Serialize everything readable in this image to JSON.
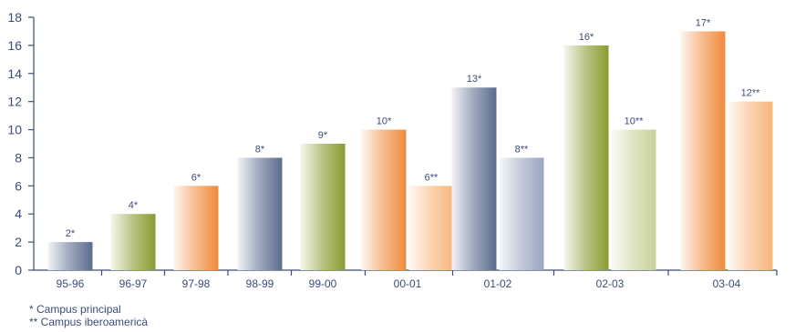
{
  "chart_data": {
    "type": "bar",
    "categories": [
      "95-96",
      "96-97",
      "97-98",
      "98-99",
      "99-00",
      "00-01",
      "01-02",
      "02-03",
      "03-04"
    ],
    "ylim": [
      0,
      18
    ],
    "yticks": [
      0,
      2,
      4,
      6,
      8,
      10,
      12,
      14,
      16,
      18
    ],
    "grid": false,
    "bars": [
      {
        "category": "95-96",
        "value": 2,
        "label": "2*",
        "color": "#5a6b8c"
      },
      {
        "category": "96-97",
        "value": 4,
        "label": "4*",
        "color": "#8a9a2e"
      },
      {
        "category": "97-98",
        "value": 6,
        "label": "6*",
        "color": "#f08a3c"
      },
      {
        "category": "98-99",
        "value": 8,
        "label": "8*",
        "color": "#5a6b8c"
      },
      {
        "category": "99-00",
        "value": 9,
        "label": "9*",
        "color": "#8a9a2e"
      },
      {
        "category": "00-01",
        "value": 10,
        "label": "10*",
        "color": "#f08a3c"
      },
      {
        "category": "00-01",
        "value": 6,
        "label": "6**",
        "color": "#f7b57a"
      },
      {
        "category": "01-02",
        "value": 13,
        "label": "13*",
        "color": "#5a6b8c"
      },
      {
        "category": "01-02",
        "value": 8,
        "label": "8**",
        "color": "#9aa4bd"
      },
      {
        "category": "02-03",
        "value": 16,
        "label": "16*",
        "color": "#8a9a2e"
      },
      {
        "category": "02-03",
        "value": 10,
        "label": "10**",
        "color": "#c9cf9a"
      },
      {
        "category": "03-04",
        "value": 17,
        "label": "17*",
        "color": "#f08a3c"
      },
      {
        "category": "03-04",
        "value": 12,
        "label": "12**",
        "color": "#f7b57a"
      }
    ],
    "text_color": "#3b4c78",
    "axis_color": "#3b4c78"
  },
  "notes": {
    "principal": "* Campus principal",
    "iberoamerica": "** Campus iberoamericà"
  }
}
